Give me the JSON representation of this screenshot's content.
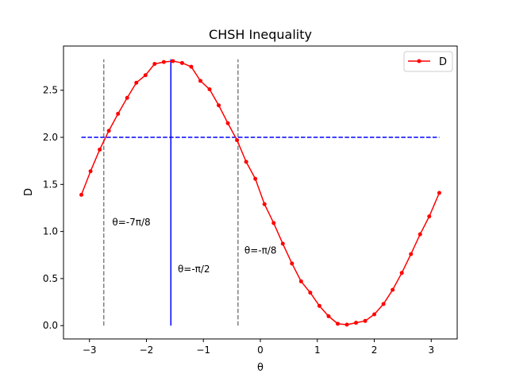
{
  "chart_data": {
    "type": "line",
    "title": "CHSH Inequality",
    "xlabel": "θ",
    "ylabel": "D",
    "xlim": [
      -3.4558,
      3.4558
    ],
    "ylim": [
      -0.1414,
      2.9698
    ],
    "xticks": [
      -3,
      -2,
      -1,
      0,
      1,
      2,
      3
    ],
    "xtick_labels": [
      "−3",
      "−2",
      "−1",
      "0",
      "1",
      "2",
      "3"
    ],
    "yticks": [
      0.0,
      0.5,
      1.0,
      1.5,
      2.0,
      2.5
    ],
    "ytick_labels": [
      "0.0",
      "0.5",
      "1.0",
      "1.5",
      "2.0",
      "2.5"
    ],
    "grid": false,
    "legend_position": "top-right",
    "series": [
      {
        "name": "D",
        "color": "#ff0000",
        "marker": "circle",
        "x": [
          -3.1416,
          -2.9808,
          -2.8201,
          -2.6594,
          -2.4987,
          -2.338,
          -2.1773,
          -2.0166,
          -1.8559,
          -1.6952,
          -1.5345,
          -1.3737,
          -1.213,
          -1.0523,
          -0.8916,
          -0.7309,
          -0.5702,
          -0.4095,
          -0.2488,
          -0.0881,
          0.0726,
          0.2333,
          0.394,
          0.5547,
          0.7154,
          0.8761,
          1.0369,
          1.1976,
          1.3583,
          1.519,
          1.6797,
          1.8404,
          2.0011,
          2.1618,
          2.3225,
          2.4832,
          2.6439,
          2.8046,
          2.9653,
          3.1416
        ],
        "y": [
          1.39,
          1.64,
          1.87,
          2.07,
          2.25,
          2.42,
          2.58,
          2.66,
          2.78,
          2.8,
          2.81,
          2.79,
          2.75,
          2.6,
          2.51,
          2.34,
          2.15,
          1.97,
          1.74,
          1.56,
          1.29,
          1.09,
          0.87,
          0.66,
          0.47,
          0.35,
          0.21,
          0.1,
          0.02,
          0.01,
          0.03,
          0.05,
          0.12,
          0.23,
          0.38,
          0.56,
          0.76,
          0.97,
          1.16,
          1.41
        ]
      }
    ],
    "hlines": [
      {
        "y": 2.0,
        "xmin": -3.1416,
        "xmax": 3.1416,
        "color": "#0000ff",
        "style": "dashed"
      }
    ],
    "vlines": [
      {
        "x": -2.7489,
        "ymin": 0.0,
        "ymax": 2.8284,
        "color": "#808080",
        "style": "dashed"
      },
      {
        "x": -1.5708,
        "ymin": 0.0,
        "ymax": 2.8284,
        "color": "#0000ff",
        "style": "solid"
      },
      {
        "x": -0.3927,
        "ymin": 0.0,
        "ymax": 2.8284,
        "color": "#808080",
        "style": "dashed"
      }
    ],
    "annotations": [
      {
        "text": "θ=-7π/8",
        "x": -2.6,
        "y": 1.1
      },
      {
        "text": "θ=-π/2",
        "x": -1.45,
        "y": 0.6
      },
      {
        "text": "θ=-π/8",
        "x": -0.28,
        "y": 0.8
      }
    ],
    "legend_entries": [
      "D"
    ]
  }
}
